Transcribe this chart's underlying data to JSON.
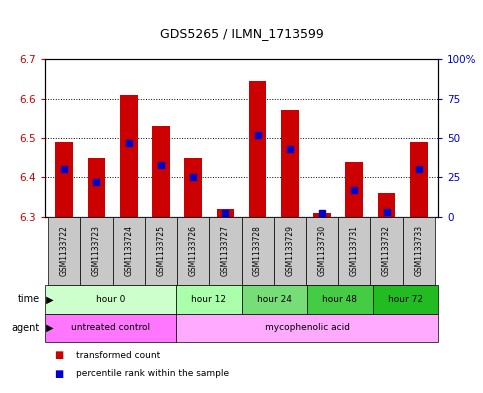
{
  "title": "GDS5265 / ILMN_1713599",
  "samples": [
    "GSM1133722",
    "GSM1133723",
    "GSM1133724",
    "GSM1133725",
    "GSM1133726",
    "GSM1133727",
    "GSM1133728",
    "GSM1133729",
    "GSM1133730",
    "GSM1133731",
    "GSM1133732",
    "GSM1133733"
  ],
  "transformed_count": [
    6.49,
    6.45,
    6.61,
    6.53,
    6.45,
    6.32,
    6.645,
    6.57,
    6.31,
    6.44,
    6.36,
    6.49
  ],
  "percentile_rank": [
    30,
    22,
    47,
    33,
    25,
    2,
    52,
    43,
    2,
    17,
    3,
    30
  ],
  "ylim": [
    6.3,
    6.7
  ],
  "yticks_left": [
    6.3,
    6.4,
    6.5,
    6.6,
    6.7
  ],
  "yticks_right": [
    0,
    25,
    50,
    75,
    100
  ],
  "ylabel_left_color": "#cc0000",
  "ylabel_right_color": "#0000cc",
  "bar_color_red": "#cc0000",
  "bar_color_blue": "#0000cc",
  "time_groups": [
    {
      "label": "hour 0",
      "start": 0,
      "end": 4,
      "color": "#ccffcc"
    },
    {
      "label": "hour 12",
      "start": 4,
      "end": 6,
      "color": "#aaffaa"
    },
    {
      "label": "hour 24",
      "start": 6,
      "end": 8,
      "color": "#77dd77"
    },
    {
      "label": "hour 48",
      "start": 8,
      "end": 10,
      "color": "#44cc44"
    },
    {
      "label": "hour 72",
      "start": 10,
      "end": 12,
      "color": "#22bb22"
    }
  ],
  "agent_groups": [
    {
      "label": "untreated control",
      "start": 0,
      "end": 4,
      "color": "#ff77ff"
    },
    {
      "label": "mycophenolic acid",
      "start": 4,
      "end": 12,
      "color": "#ffaaff"
    }
  ],
  "legend_red_label": "transformed count",
  "legend_blue_label": "percentile rank within the sample",
  "time_label": "time",
  "agent_label": "agent",
  "background_color": "#ffffff",
  "sample_bg_color": "#c8c8c8"
}
